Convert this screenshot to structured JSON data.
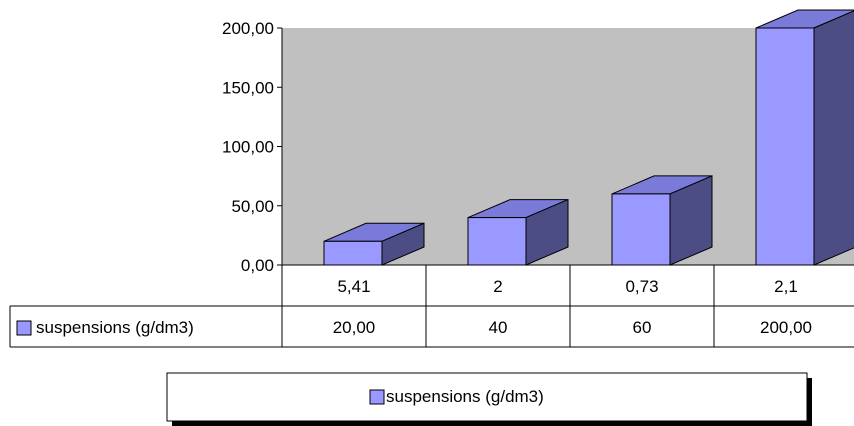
{
  "chart_data": {
    "type": "bar",
    "categories": [
      "5,41",
      "2",
      "0,73",
      "2,1"
    ],
    "series": [
      {
        "name": "suspensions (g/dm3)",
        "values": [
          20,
          40,
          60,
          200
        ],
        "value_labels": [
          "20,00",
          "40",
          "60",
          "200,00"
        ]
      }
    ],
    "y_ticks": [
      "0,00",
      "50,00",
      "100,00",
      "150,00",
      "200,00"
    ],
    "ylim": [
      0,
      200
    ],
    "grid": false,
    "legend": "bottom",
    "data_table": true
  },
  "colors": {
    "plot_area": "#c0c0c0",
    "bar_front": "#9999ff",
    "bar_top": "#7a7ad9",
    "bar_side": "#4d4d85",
    "stroke": "#000000"
  }
}
